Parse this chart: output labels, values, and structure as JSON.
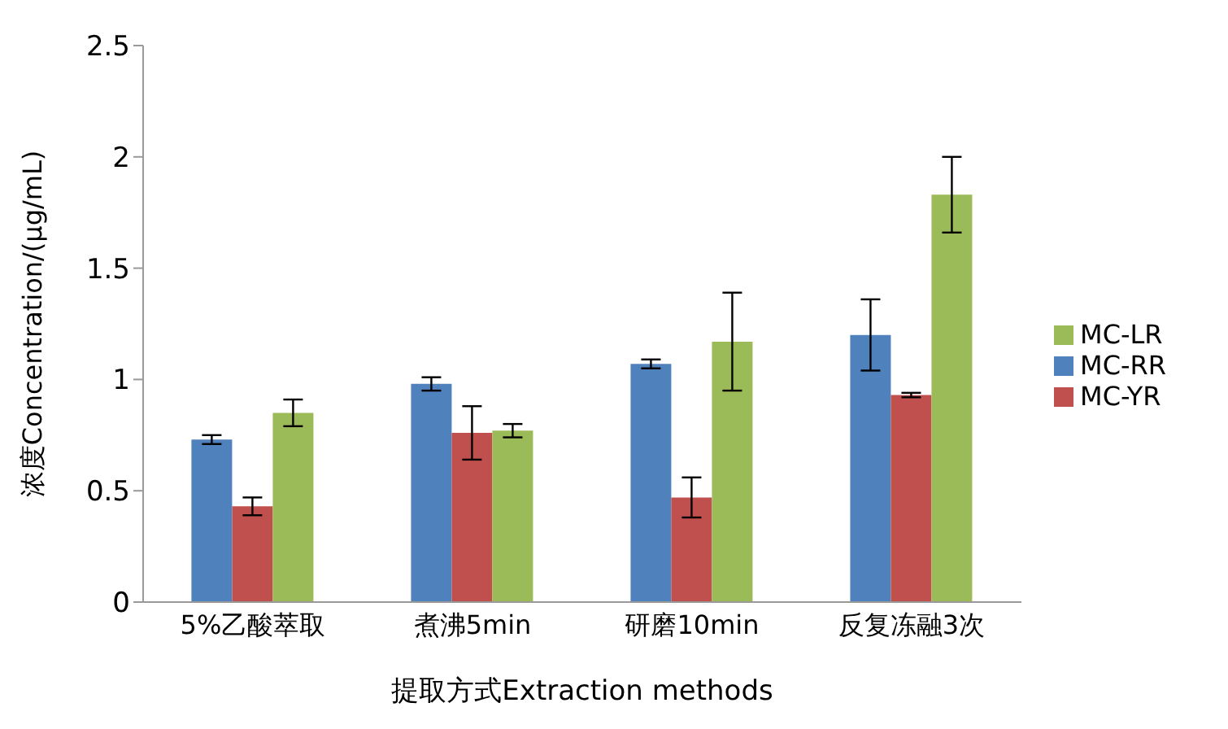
{
  "chart_data": {
    "type": "bar",
    "xlabel": "提取方式Extraction methods",
    "ylabel": "浓度Concentration/(μg/mL)",
    "categories": [
      "5%乙酸萃取",
      "煮沸5min",
      "研磨10min",
      "反复冻融3次"
    ],
    "series": [
      {
        "name": "MC-RR",
        "color": "#4f81bd",
        "values": [
          0.73,
          0.98,
          1.07,
          1.2
        ],
        "errors": [
          0.02,
          0.03,
          0.02,
          0.16
        ]
      },
      {
        "name": "MC-YR",
        "color": "#c0504d",
        "values": [
          0.43,
          0.76,
          0.47,
          0.93
        ],
        "errors": [
          0.04,
          0.12,
          0.09,
          0.01
        ]
      },
      {
        "name": "MC-LR",
        "color": "#9bbb59",
        "values": [
          0.85,
          0.77,
          1.17,
          1.83
        ],
        "errors": [
          0.06,
          0.03,
          0.22,
          0.17
        ]
      }
    ],
    "ylim": [
      0,
      2.5
    ],
    "yticks": [
      0,
      0.5,
      1,
      1.5,
      2,
      2.5
    ],
    "grid": false,
    "legend": "right"
  }
}
